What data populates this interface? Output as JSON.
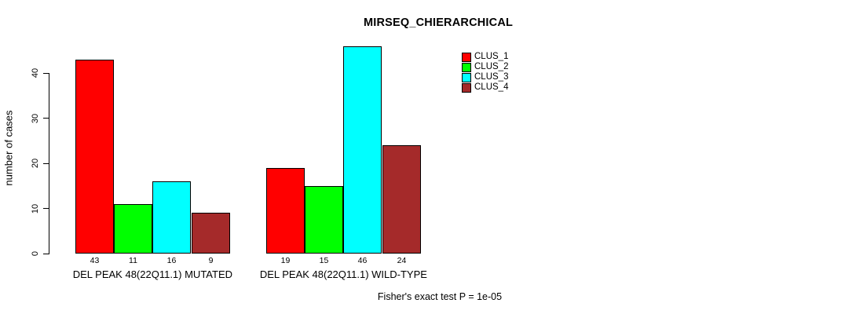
{
  "chart_data": {
    "type": "bar",
    "title": "MIRSEQ_CHIERARCHICAL",
    "ylabel": "number of cases",
    "xlabel": "",
    "categories": [
      "DEL PEAK 48(22Q11.1) MUTATED",
      "DEL PEAK 48(22Q11.1) WILD-TYPE"
    ],
    "series": [
      {
        "name": "CLUS_1",
        "color": "#FF0000",
        "values": [
          43,
          19
        ]
      },
      {
        "name": "CLUS_2",
        "color": "#00FF00",
        "values": [
          11,
          15
        ]
      },
      {
        "name": "CLUS_3",
        "color": "#00FFFF",
        "values": [
          16,
          46
        ]
      },
      {
        "name": "CLUS_4",
        "color": "#A52A2A",
        "values": [
          9,
          24
        ]
      }
    ],
    "yticks": [
      0,
      10,
      20,
      30,
      40
    ],
    "ylim": [
      0,
      46
    ],
    "grid": false,
    "legend_position": "top-right",
    "bar_value_labels": true,
    "annotation": "Fisher's exact test P = 1e-05",
    "axis_color": "#000000",
    "background_color": "#FFFFFF"
  }
}
